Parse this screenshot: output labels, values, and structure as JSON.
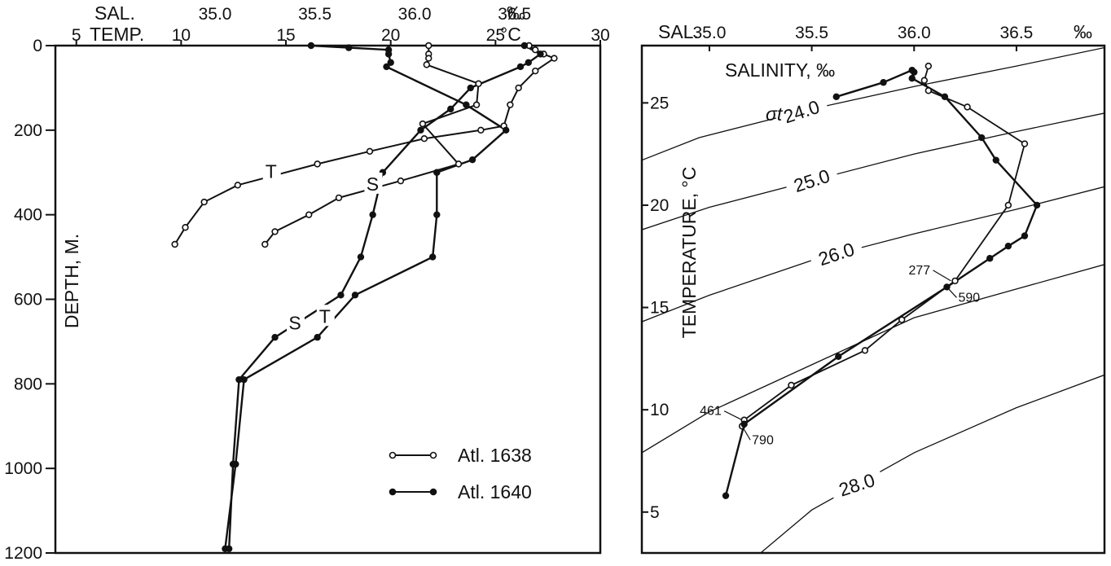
{
  "chart_data": [
    {
      "type": "line",
      "panel": "depth-profiles",
      "title": "",
      "ylabel": "DEPTH, M.",
      "ylim": [
        0,
        1200
      ],
      "yticks": [
        0,
        200,
        400,
        600,
        800,
        1000,
        1200
      ],
      "temp_axis": {
        "label": "TEMP.",
        "unit": "°C",
        "ticks": [
          "5",
          "10",
          "15",
          "20",
          "25",
          "30"
        ],
        "range": [
          4,
          30
        ]
      },
      "sal_axis": {
        "label": "SAL.",
        "unit": "‰",
        "ticks": [
          "35.0",
          "35.5",
          "36.0",
          "36.5"
        ],
        "range": [
          34.2,
          36.93
        ]
      },
      "curve_labels": [
        "T",
        "S",
        "T",
        "S"
      ],
      "series": [
        {
          "name": "Atl. 1638",
          "marker": "open",
          "variable": "temperature",
          "points": [
            [
              26.6,
              0
            ],
            [
              26.9,
              10
            ],
            [
              27.3,
              20
            ],
            [
              27.8,
              30
            ],
            [
              26.9,
              60
            ],
            [
              26.1,
              100
            ],
            [
              25.7,
              140
            ],
            [
              25.4,
              190
            ],
            [
              24.3,
              200
            ],
            [
              21.6,
              220
            ],
            [
              19.0,
              250
            ],
            [
              16.5,
              280
            ],
            [
              12.7,
              330
            ],
            [
              11.1,
              370
            ],
            [
              10.2,
              430
            ],
            [
              9.7,
              470
            ]
          ]
        },
        {
          "name": "Atl. 1638",
          "marker": "open",
          "variable": "salinity",
          "points": [
            [
              36.07,
              0
            ],
            [
              36.07,
              20
            ],
            [
              36.07,
              30
            ],
            [
              36.06,
              45
            ],
            [
              36.32,
              90
            ],
            [
              36.31,
              140
            ],
            [
              36.04,
              185
            ],
            [
              36.22,
              280
            ],
            [
              35.93,
              320
            ],
            [
              35.62,
              360
            ],
            [
              35.47,
              400
            ],
            [
              35.3,
              440
            ],
            [
              35.25,
              470
            ]
          ]
        },
        {
          "name": "Atl. 1640",
          "marker": "filled",
          "variable": "temperature",
          "points": [
            [
              16.2,
              0
            ],
            [
              18.0,
              5
            ],
            [
              19.9,
              10
            ],
            [
              19.9,
              20
            ],
            [
              20.0,
              40
            ],
            [
              19.8,
              50
            ],
            [
              23.6,
              140
            ],
            [
              25.5,
              200
            ],
            [
              23.9,
              270
            ],
            [
              22.2,
              300
            ],
            [
              22.2,
              400
            ],
            [
              22.0,
              500
            ],
            [
              18.3,
              590
            ],
            [
              16.5,
              690
            ],
            [
              13.0,
              790
            ],
            [
              12.6,
              990
            ],
            [
              12.1,
              1190
            ]
          ]
        },
        {
          "name": "Atl. 1640",
          "marker": "filled",
          "variable": "salinity",
          "points": [
            [
              36.55,
              0
            ],
            [
              36.63,
              20
            ],
            [
              36.57,
              40
            ],
            [
              36.53,
              50
            ],
            [
              36.28,
              100
            ],
            [
              36.18,
              150
            ],
            [
              36.03,
              200
            ],
            [
              35.84,
              300
            ],
            [
              35.79,
              400
            ],
            [
              35.73,
              500
            ],
            [
              35.63,
              590
            ],
            [
              35.3,
              690
            ],
            [
              35.12,
              790
            ],
            [
              35.09,
              990
            ],
            [
              35.07,
              1190
            ]
          ]
        }
      ],
      "legend": {
        "position": "bottom-right",
        "items": [
          "Atl. 1638",
          "Atl. 1640"
        ]
      }
    },
    {
      "type": "line",
      "panel": "t-s-diagram",
      "title": "",
      "xlabel": "SAL.",
      "x_unit": "‰",
      "xticks": [
        "35.0",
        "35.5",
        "36.0",
        "36.5"
      ],
      "xlim": [
        34.67,
        36.93
      ],
      "ylabel": "TEMPERATURE, °C",
      "ylim": [
        3.0,
        27.8
      ],
      "yticks": [
        5,
        10,
        15,
        20,
        25
      ],
      "inner_label": "SALINITY, ‰",
      "isopycnal_symbol": "σt",
      "isopycnals": [
        {
          "label": "24.0",
          "points": [
            [
              34.67,
              22.2
            ],
            [
              34.95,
              23.3
            ],
            [
              35.5,
              24.7
            ],
            [
              36.0,
              25.8
            ],
            [
              36.5,
              26.8
            ],
            [
              36.93,
              27.7
            ]
          ]
        },
        {
          "label": "25.0",
          "points": [
            [
              34.67,
              18.8
            ],
            [
              35.0,
              19.9
            ],
            [
              35.5,
              21.2
            ],
            [
              36.0,
              22.5
            ],
            [
              36.5,
              23.6
            ],
            [
              36.93,
              24.5
            ]
          ]
        },
        {
          "label": "26.0",
          "points": [
            [
              34.67,
              14.3
            ],
            [
              35.0,
              15.6
            ],
            [
              35.5,
              17.3
            ],
            [
              36.0,
              18.6
            ],
            [
              36.5,
              19.8
            ],
            [
              36.93,
              20.9
            ]
          ]
        },
        {
          "label": "",
          "points": [
            [
              34.67,
              7.9
            ],
            [
              35.0,
              9.9
            ],
            [
              35.5,
              12.2
            ],
            [
              36.0,
              14.5
            ],
            [
              36.5,
              15.9
            ],
            [
              36.93,
              17.1
            ]
          ]
        },
        {
          "label": "28.0",
          "points": [
            [
              35.25,
              3.0
            ],
            [
              35.5,
              5.1
            ],
            [
              36.0,
              7.9
            ],
            [
              36.5,
              10.1
            ],
            [
              36.93,
              11.7
            ]
          ]
        }
      ],
      "series": [
        {
          "name": "Atl. 1638",
          "marker": "open",
          "points": [
            [
              36.07,
              26.8
            ],
            [
              36.05,
              26.1
            ],
            [
              36.07,
              25.6
            ],
            [
              36.26,
              24.8
            ],
            [
              36.54,
              23.0
            ],
            [
              36.46,
              20.0
            ],
            [
              36.2,
              16.3
            ],
            [
              35.94,
              14.4
            ],
            [
              35.76,
              12.9
            ],
            [
              35.4,
              11.2
            ],
            [
              35.17,
              9.5
            ],
            [
              35.16,
              9.2
            ]
          ]
        },
        {
          "name": "Atl. 1640",
          "marker": "filled",
          "points": [
            [
              35.62,
              25.3
            ],
            [
              35.85,
              26.0
            ],
            [
              35.99,
              26.6
            ],
            [
              36.0,
              26.5
            ],
            [
              35.99,
              26.2
            ],
            [
              36.15,
              25.3
            ],
            [
              36.33,
              23.3
            ],
            [
              36.4,
              22.2
            ],
            [
              36.6,
              20.0
            ],
            [
              36.54,
              18.5
            ],
            [
              36.46,
              18.0
            ],
            [
              36.37,
              17.4
            ],
            [
              36.16,
              16.0
            ],
            [
              35.63,
              12.6
            ],
            [
              35.17,
              9.3
            ],
            [
              35.08,
              5.8
            ]
          ]
        }
      ],
      "annotations": [
        {
          "text": "277",
          "series": "Atl. 1638",
          "at": [
            36.18,
            16.3
          ]
        },
        {
          "text": "590",
          "series": "Atl. 1640",
          "at": [
            36.16,
            16.0
          ]
        },
        {
          "text": "461",
          "series": "Atl. 1638",
          "at": [
            35.16,
            9.5
          ]
        },
        {
          "text": "790",
          "series": "Atl. 1640",
          "at": [
            35.16,
            9.2
          ]
        }
      ]
    }
  ]
}
